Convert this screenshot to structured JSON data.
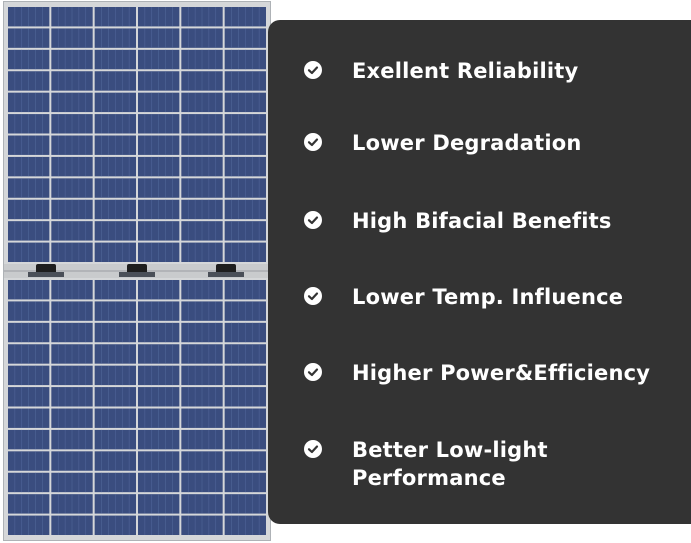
{
  "colors": {
    "card_background": "#333333",
    "text": "#ffffff",
    "panel_cells": "#3a4d7f",
    "panel_frame": "#d5d7d9"
  },
  "panel": {
    "icon": "solar-panel-image"
  },
  "features": [
    {
      "label": "Exellent Reliability",
      "icon": "check-circle-icon"
    },
    {
      "label": "Lower Degradation",
      "icon": "check-circle-icon"
    },
    {
      "label": "High Bifacial Benefits",
      "icon": "check-circle-icon"
    },
    {
      "label": "Lower Temp. Influence",
      "icon": "check-circle-icon"
    },
    {
      "label": "Higher Power&Efficiency",
      "icon": "check-circle-icon"
    },
    {
      "label": "Better Low-light Performance",
      "icon": "check-circle-icon"
    }
  ]
}
